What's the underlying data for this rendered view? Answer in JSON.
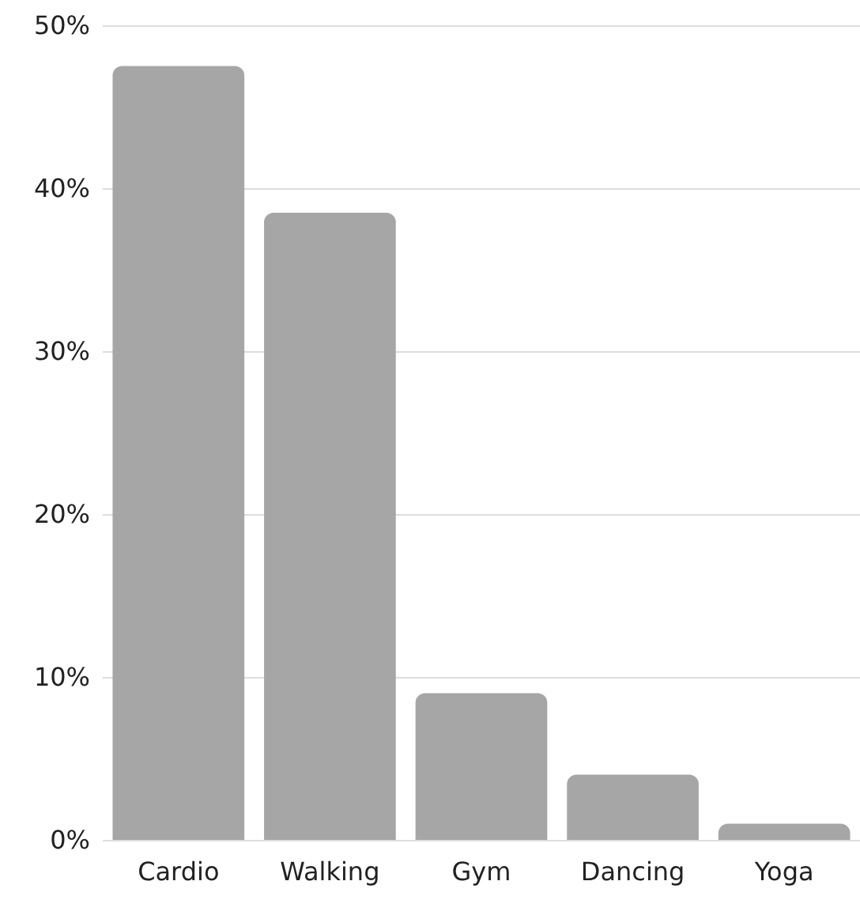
{
  "chart_data": {
    "type": "bar",
    "categories": [
      "Cardio",
      "Walking",
      "Gym",
      "Dancing",
      "Yoga"
    ],
    "values": [
      47.5,
      38.5,
      9,
      4,
      1
    ],
    "color": "#a6a6a6",
    "ylim": [
      0,
      50
    ],
    "yticks": [
      {
        "value": 0,
        "label": "0%"
      },
      {
        "value": 10,
        "label": "10%"
      },
      {
        "value": 20,
        "label": "20%"
      },
      {
        "value": 30,
        "label": "30%"
      },
      {
        "value": 40,
        "label": "40%"
      },
      {
        "value": 50,
        "label": "50%"
      }
    ],
    "grid": "y"
  }
}
